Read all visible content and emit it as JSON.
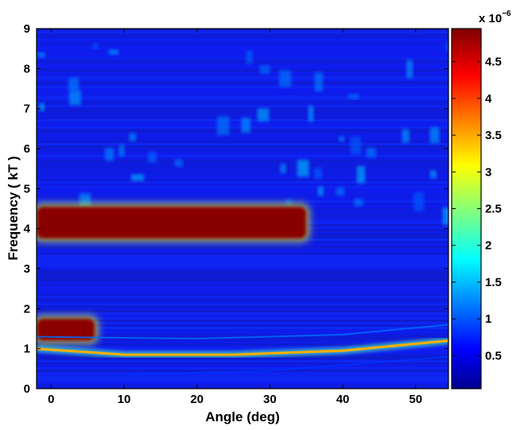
{
  "chart_data": {
    "type": "heatmap",
    "title": "",
    "xlabel": "Angle (deg)",
    "ylabel": "Frequency ( kT )",
    "xlim": [
      -2,
      54.5
    ],
    "ylim": [
      0,
      9
    ],
    "x_ticks": [
      "0",
      "10",
      "20",
      "30",
      "40",
      "50"
    ],
    "y_ticks": [
      "0",
      "1",
      "2",
      "3",
      "4",
      "5",
      "6",
      "7",
      "8",
      "9"
    ],
    "colormap": "jet",
    "colorbar": {
      "range": [
        0.05,
        4.95
      ],
      "ticks": [
        "0.5",
        "1",
        "1.5",
        "2",
        "2.5",
        "3",
        "3.5",
        "4",
        "4.5"
      ],
      "multiplier_base": "x 10",
      "multiplier_exponent": "−6"
    },
    "features": [
      {
        "kind": "saturated band",
        "x": [
          -2,
          35
        ],
        "y": [
          3.75,
          4.55
        ],
        "value": 4.9
      },
      {
        "kind": "saturated band",
        "x": [
          -2,
          6
        ],
        "y": [
          1.2,
          1.75
        ],
        "value": 4.9
      },
      {
        "kind": "dispersion curve",
        "points": [
          [
            -2,
            1.0
          ],
          [
            10,
            0.85
          ],
          [
            25,
            0.85
          ],
          [
            40,
            0.95
          ],
          [
            54.5,
            1.2
          ]
        ],
        "value": 3.5
      },
      {
        "kind": "faint curve",
        "points": [
          [
            -2,
            1.3
          ],
          [
            20,
            1.25
          ],
          [
            40,
            1.35
          ],
          [
            54.5,
            1.6
          ]
        ],
        "value": 1.2
      },
      {
        "kind": "faint curve",
        "points": [
          [
            10,
            0.35
          ],
          [
            30,
            0.45
          ],
          [
            54.5,
            0.8
          ]
        ],
        "value": 0.9
      }
    ]
  }
}
